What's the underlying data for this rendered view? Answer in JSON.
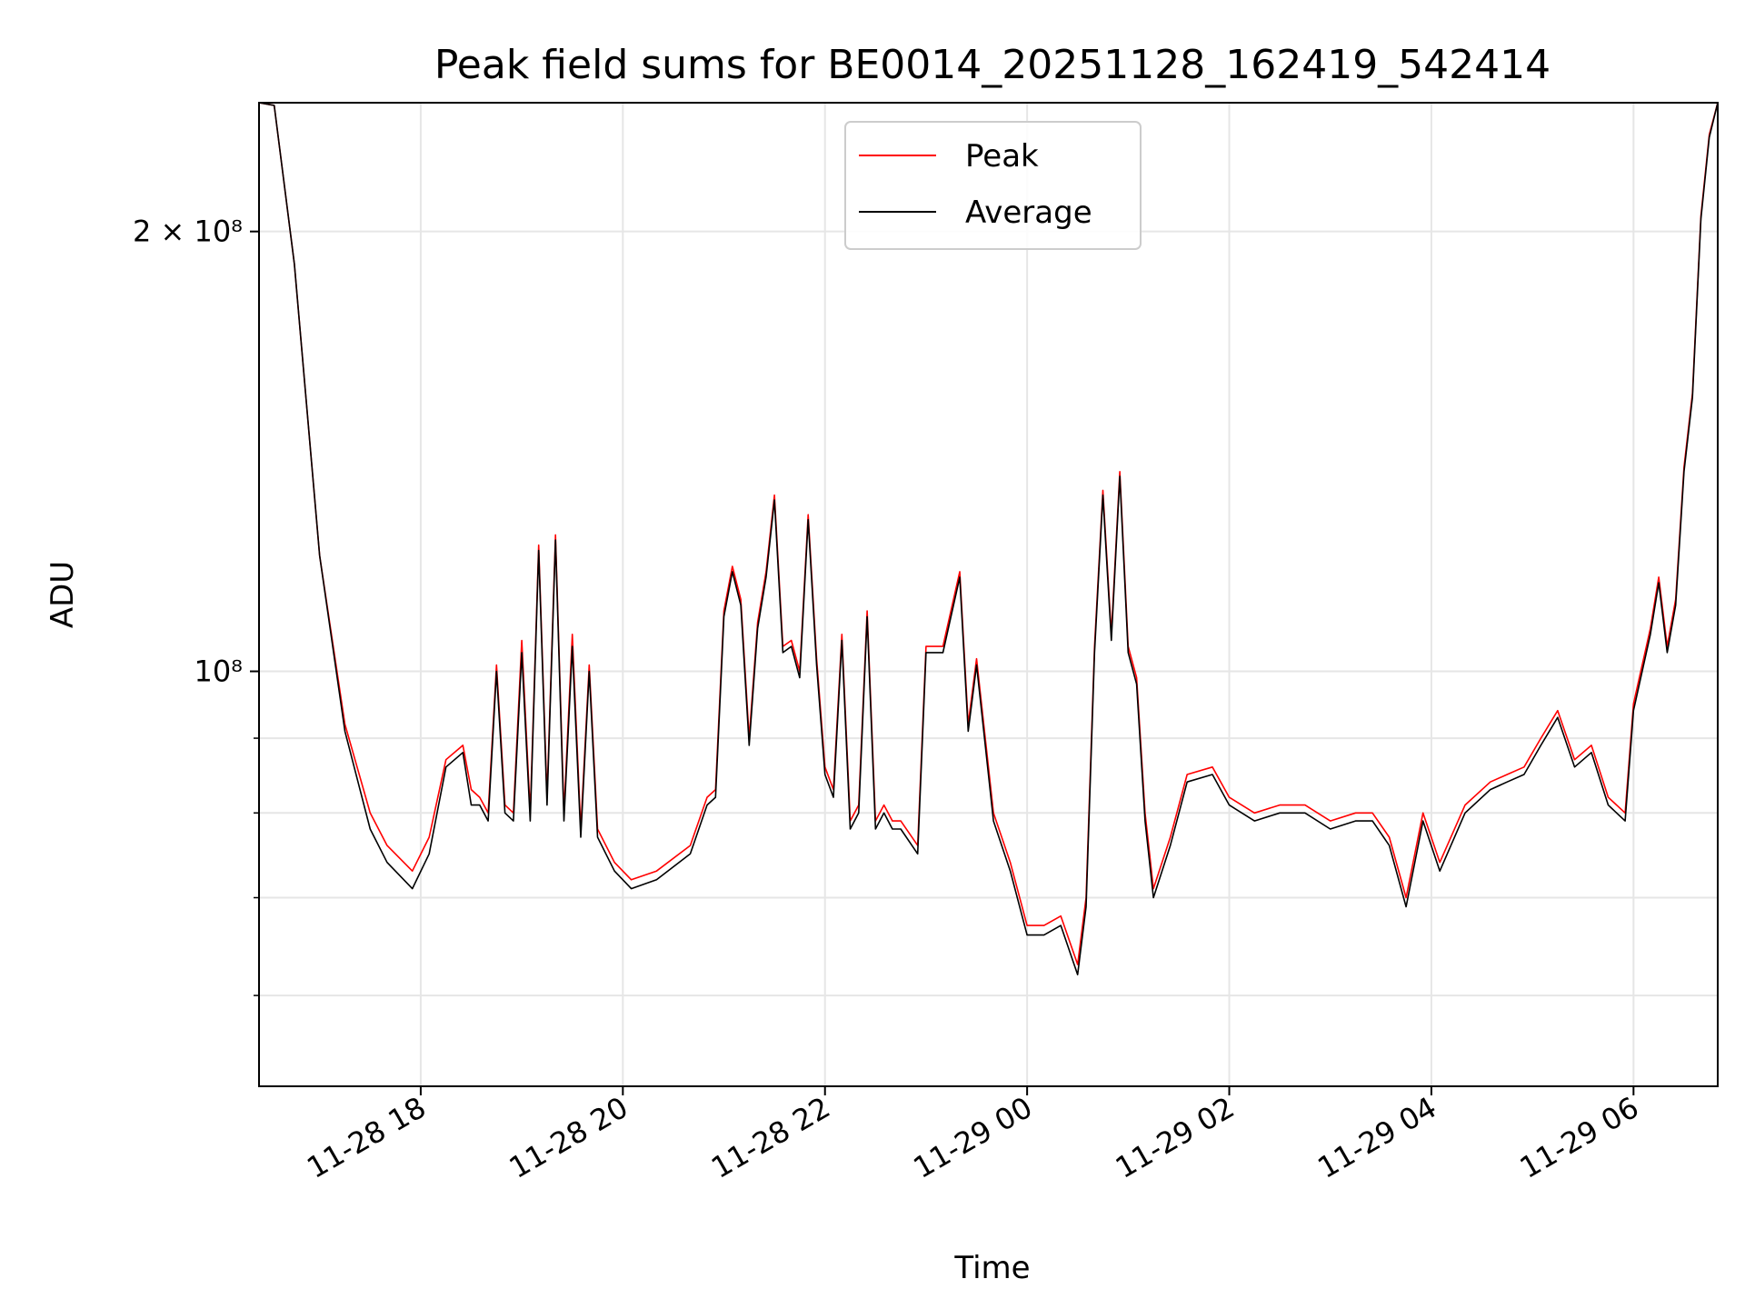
{
  "chart_data": {
    "type": "line",
    "title": "Peak field sums for BE0014_20251128_162419_542414",
    "xlabel": "Time",
    "ylabel": "ADU",
    "yscale": "log",
    "grid": true,
    "legend_position": "top-center",
    "x_ticks": [
      "11-28 18",
      "11-28 20",
      "11-28 22",
      "11-29 00",
      "11-29 02",
      "11-29 04",
      "11-29 06"
    ],
    "x_tick_rotation": 30,
    "y_tick_major": [
      "2 × 10⁸",
      "10⁸"
    ],
    "xlim": [
      "2025-11-28 16:24",
      "2025-11-29 06:50"
    ],
    "ylim": [
      52000000,
      245000000
    ],
    "series": [
      {
        "name": "Peak",
        "color": "#ff0000",
        "x": [
          "2025-11-28 16:24",
          "2025-11-28 16:33",
          "2025-11-28 16:45",
          "2025-11-28 17:00",
          "2025-11-28 17:15",
          "2025-11-28 17:30",
          "2025-11-28 17:40",
          "2025-11-28 17:55",
          "2025-11-28 18:05",
          "2025-11-28 18:15",
          "2025-11-28 18:25",
          "2025-11-28 18:30",
          "2025-11-28 18:35",
          "2025-11-28 18:40",
          "2025-11-28 18:45",
          "2025-11-28 18:50",
          "2025-11-28 18:55",
          "2025-11-28 19:00",
          "2025-11-28 19:05",
          "2025-11-28 19:10",
          "2025-11-28 19:15",
          "2025-11-28 19:20",
          "2025-11-28 19:25",
          "2025-11-28 19:30",
          "2025-11-28 19:35",
          "2025-11-28 19:40",
          "2025-11-28 19:45",
          "2025-11-28 19:55",
          "2025-11-28 20:05",
          "2025-11-28 20:20",
          "2025-11-28 20:40",
          "2025-11-28 20:50",
          "2025-11-28 20:55",
          "2025-11-28 21:00",
          "2025-11-28 21:05",
          "2025-11-28 21:10",
          "2025-11-28 21:15",
          "2025-11-28 21:20",
          "2025-11-28 21:25",
          "2025-11-28 21:30",
          "2025-11-28 21:35",
          "2025-11-28 21:40",
          "2025-11-28 21:45",
          "2025-11-28 21:50",
          "2025-11-28 21:55",
          "2025-11-28 22:00",
          "2025-11-28 22:05",
          "2025-11-28 22:10",
          "2025-11-28 22:15",
          "2025-11-28 22:20",
          "2025-11-28 22:25",
          "2025-11-28 22:30",
          "2025-11-28 22:35",
          "2025-11-28 22:40",
          "2025-11-28 22:45",
          "2025-11-28 22:55",
          "2025-11-28 23:00",
          "2025-11-28 23:10",
          "2025-11-28 23:20",
          "2025-11-28 23:25",
          "2025-11-28 23:30",
          "2025-11-28 23:40",
          "2025-11-28 23:50",
          "2025-11-29 00:00",
          "2025-11-29 00:10",
          "2025-11-29 00:20",
          "2025-11-29 00:30",
          "2025-11-29 00:35",
          "2025-11-29 00:40",
          "2025-11-29 00:45",
          "2025-11-29 00:50",
          "2025-11-29 00:55",
          "2025-11-29 01:00",
          "2025-11-29 01:05",
          "2025-11-29 01:10",
          "2025-11-29 01:15",
          "2025-11-29 01:25",
          "2025-11-29 01:35",
          "2025-11-29 01:50",
          "2025-11-29 02:00",
          "2025-11-29 02:15",
          "2025-11-29 02:30",
          "2025-11-29 02:45",
          "2025-11-29 03:00",
          "2025-11-29 03:15",
          "2025-11-29 03:25",
          "2025-11-29 03:35",
          "2025-11-29 03:45",
          "2025-11-29 03:55",
          "2025-11-29 04:05",
          "2025-11-29 04:20",
          "2025-11-29 04:35",
          "2025-11-29 04:45",
          "2025-11-29 04:55",
          "2025-11-29 05:05",
          "2025-11-29 05:15",
          "2025-11-29 05:25",
          "2025-11-29 05:35",
          "2025-11-29 05:45",
          "2025-11-29 05:55",
          "2025-11-29 06:00",
          "2025-11-29 06:10",
          "2025-11-29 06:15",
          "2025-11-29 06:20",
          "2025-11-29 06:25",
          "2025-11-29 06:30",
          "2025-11-29 06:35",
          "2025-11-29 06:40",
          "2025-11-29 06:45",
          "2025-11-29 06:50"
        ],
        "y": [
          245000000,
          244000000,
          190000000,
          120000000,
          92000000,
          80000000,
          76000000,
          73000000,
          77000000,
          87000000,
          89000000,
          83000000,
          82000000,
          80000000,
          101000000,
          81000000,
          80000000,
          105000000,
          80000000,
          122000000,
          82000000,
          124000000,
          80000000,
          106000000,
          78000000,
          101000000,
          78000000,
          74000000,
          72000000,
          73000000,
          76000000,
          82000000,
          83000000,
          110000000,
          118000000,
          112000000,
          90000000,
          108000000,
          117000000,
          132000000,
          104000000,
          105000000,
          100000000,
          128000000,
          102000000,
          86000000,
          83000000,
          106000000,
          79000000,
          81000000,
          110000000,
          79000000,
          81000000,
          79000000,
          79000000,
          76000000,
          104000000,
          104000000,
          117000000,
          92000000,
          102000000,
          80000000,
          74000000,
          67000000,
          67000000,
          68000000,
          63000000,
          70000000,
          104000000,
          133000000,
          106000000,
          137000000,
          104000000,
          99000000,
          80000000,
          71000000,
          77000000,
          85000000,
          86000000,
          82000000,
          80000000,
          81000000,
          81000000,
          79000000,
          80000000,
          80000000,
          77000000,
          70000000,
          80000000,
          74000000,
          81000000,
          84000000,
          85000000,
          86000000,
          90000000,
          94000000,
          87000000,
          89000000,
          82000000,
          80000000,
          95000000,
          107000000,
          116000000,
          104000000,
          112000000,
          138000000,
          155000000,
          205000000,
          233000000,
          245000000
        ]
      },
      {
        "name": "Average",
        "color": "#000000",
        "x": [
          "2025-11-28 16:24",
          "2025-11-28 16:33",
          "2025-11-28 16:45",
          "2025-11-28 17:00",
          "2025-11-28 17:15",
          "2025-11-28 17:30",
          "2025-11-28 17:40",
          "2025-11-28 17:55",
          "2025-11-28 18:05",
          "2025-11-28 18:15",
          "2025-11-28 18:25",
          "2025-11-28 18:30",
          "2025-11-28 18:35",
          "2025-11-28 18:40",
          "2025-11-28 18:45",
          "2025-11-28 18:50",
          "2025-11-28 18:55",
          "2025-11-28 19:00",
          "2025-11-28 19:05",
          "2025-11-28 19:10",
          "2025-11-28 19:15",
          "2025-11-28 19:20",
          "2025-11-28 19:25",
          "2025-11-28 19:30",
          "2025-11-28 19:35",
          "2025-11-28 19:40",
          "2025-11-28 19:45",
          "2025-11-28 19:55",
          "2025-11-28 20:05",
          "2025-11-28 20:20",
          "2025-11-28 20:40",
          "2025-11-28 20:50",
          "2025-11-28 20:55",
          "2025-11-28 21:00",
          "2025-11-28 21:05",
          "2025-11-28 21:10",
          "2025-11-28 21:15",
          "2025-11-28 21:20",
          "2025-11-28 21:25",
          "2025-11-28 21:30",
          "2025-11-28 21:35",
          "2025-11-28 21:40",
          "2025-11-28 21:45",
          "2025-11-28 21:50",
          "2025-11-28 21:55",
          "2025-11-28 22:00",
          "2025-11-28 22:05",
          "2025-11-28 22:10",
          "2025-11-28 22:15",
          "2025-11-28 22:20",
          "2025-11-28 22:25",
          "2025-11-28 22:30",
          "2025-11-28 22:35",
          "2025-11-28 22:40",
          "2025-11-28 22:45",
          "2025-11-28 22:55",
          "2025-11-28 23:00",
          "2025-11-28 23:10",
          "2025-11-28 23:20",
          "2025-11-28 23:25",
          "2025-11-28 23:30",
          "2025-11-28 23:40",
          "2025-11-28 23:50",
          "2025-11-29 00:00",
          "2025-11-29 00:10",
          "2025-11-29 00:20",
          "2025-11-29 00:30",
          "2025-11-29 00:35",
          "2025-11-29 00:40",
          "2025-11-29 00:45",
          "2025-11-29 00:50",
          "2025-11-29 00:55",
          "2025-11-29 01:00",
          "2025-11-29 01:05",
          "2025-11-29 01:10",
          "2025-11-29 01:15",
          "2025-11-29 01:25",
          "2025-11-29 01:35",
          "2025-11-29 01:50",
          "2025-11-29 02:00",
          "2025-11-29 02:15",
          "2025-11-29 02:30",
          "2025-11-29 02:45",
          "2025-11-29 03:00",
          "2025-11-29 03:15",
          "2025-11-29 03:25",
          "2025-11-29 03:35",
          "2025-11-29 03:45",
          "2025-11-29 03:55",
          "2025-11-29 04:05",
          "2025-11-29 04:20",
          "2025-11-29 04:35",
          "2025-11-29 04:45",
          "2025-11-29 04:55",
          "2025-11-29 05:05",
          "2025-11-29 05:15",
          "2025-11-29 05:25",
          "2025-11-29 05:35",
          "2025-11-29 05:45",
          "2025-11-29 05:55",
          "2025-11-29 06:00",
          "2025-11-29 06:10",
          "2025-11-29 06:15",
          "2025-11-29 06:20",
          "2025-11-29 06:25",
          "2025-11-29 06:30",
          "2025-11-29 06:35",
          "2025-11-29 06:40",
          "2025-11-29 06:45",
          "2025-11-29 06:50"
        ],
        "y": [
          245000000,
          244000000,
          190000000,
          120000000,
          91000000,
          78000000,
          74000000,
          71000000,
          75000000,
          86000000,
          88000000,
          81000000,
          81000000,
          79000000,
          100000000,
          80000000,
          79000000,
          103000000,
          79000000,
          121000000,
          81000000,
          123000000,
          79000000,
          104000000,
          77000000,
          100000000,
          77000000,
          73000000,
          71000000,
          72000000,
          75000000,
          81000000,
          82000000,
          109000000,
          117000000,
          111000000,
          89000000,
          107000000,
          116000000,
          131000000,
          103000000,
          104000000,
          99000000,
          127000000,
          101000000,
          85000000,
          82000000,
          105000000,
          78000000,
          80000000,
          109000000,
          78000000,
          80000000,
          78000000,
          78000000,
          75000000,
          103000000,
          103000000,
          116000000,
          91000000,
          101000000,
          79000000,
          73000000,
          66000000,
          66000000,
          67000000,
          62000000,
          69000000,
          103000000,
          132000000,
          105000000,
          136000000,
          103000000,
          98000000,
          79000000,
          70000000,
          76000000,
          84000000,
          85000000,
          81000000,
          79000000,
          80000000,
          80000000,
          78000000,
          79000000,
          79000000,
          76000000,
          69000000,
          79000000,
          73000000,
          80000000,
          83000000,
          84000000,
          85000000,
          89000000,
          93000000,
          86000000,
          88000000,
          81000000,
          79000000,
          94000000,
          106000000,
          115000000,
          103000000,
          111000000,
          137000000,
          154000000,
          204000000,
          232000000,
          245000000
        ]
      }
    ]
  }
}
